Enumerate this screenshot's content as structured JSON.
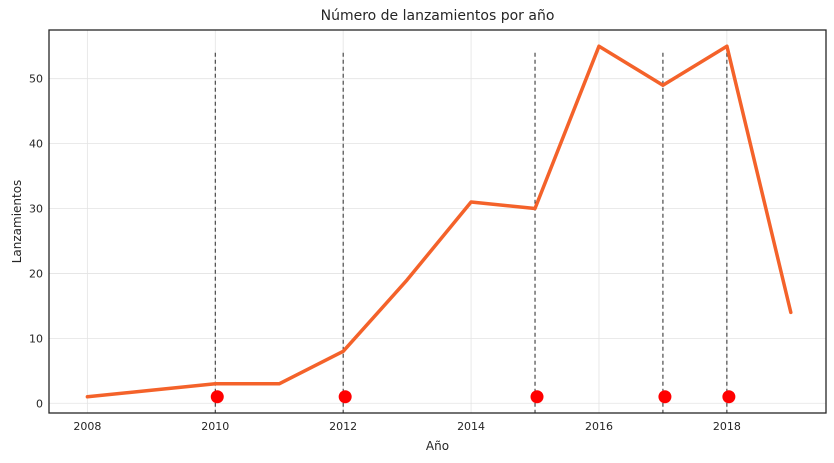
{
  "chart_data": {
    "type": "line",
    "title": "Número de lanzamientos por año",
    "xlabel": "Año",
    "ylabel": "Lanzamientos",
    "xlim": [
      2007.4,
      2019.55
    ],
    "ylim": [
      -1.5,
      57.5
    ],
    "xticks": [
      2008,
      2010,
      2012,
      2014,
      2016,
      2018
    ],
    "yticks": [
      0,
      10,
      20,
      30,
      40,
      50
    ],
    "grid": true,
    "series": [
      {
        "color": "#f4622a",
        "x": [
          2008,
          2009,
          2010,
          2011,
          2012,
          2013,
          2014,
          2015,
          2016,
          2017,
          2018,
          2019
        ],
        "y": [
          1,
          2,
          3,
          3,
          8,
          19,
          31,
          30,
          55,
          49,
          55,
          14
        ]
      }
    ],
    "event_markers": {
      "color": "#ff0000",
      "x": [
        2010,
        2012,
        2015,
        2017,
        2018
      ],
      "y": 1,
      "vline_top": 54
    }
  }
}
